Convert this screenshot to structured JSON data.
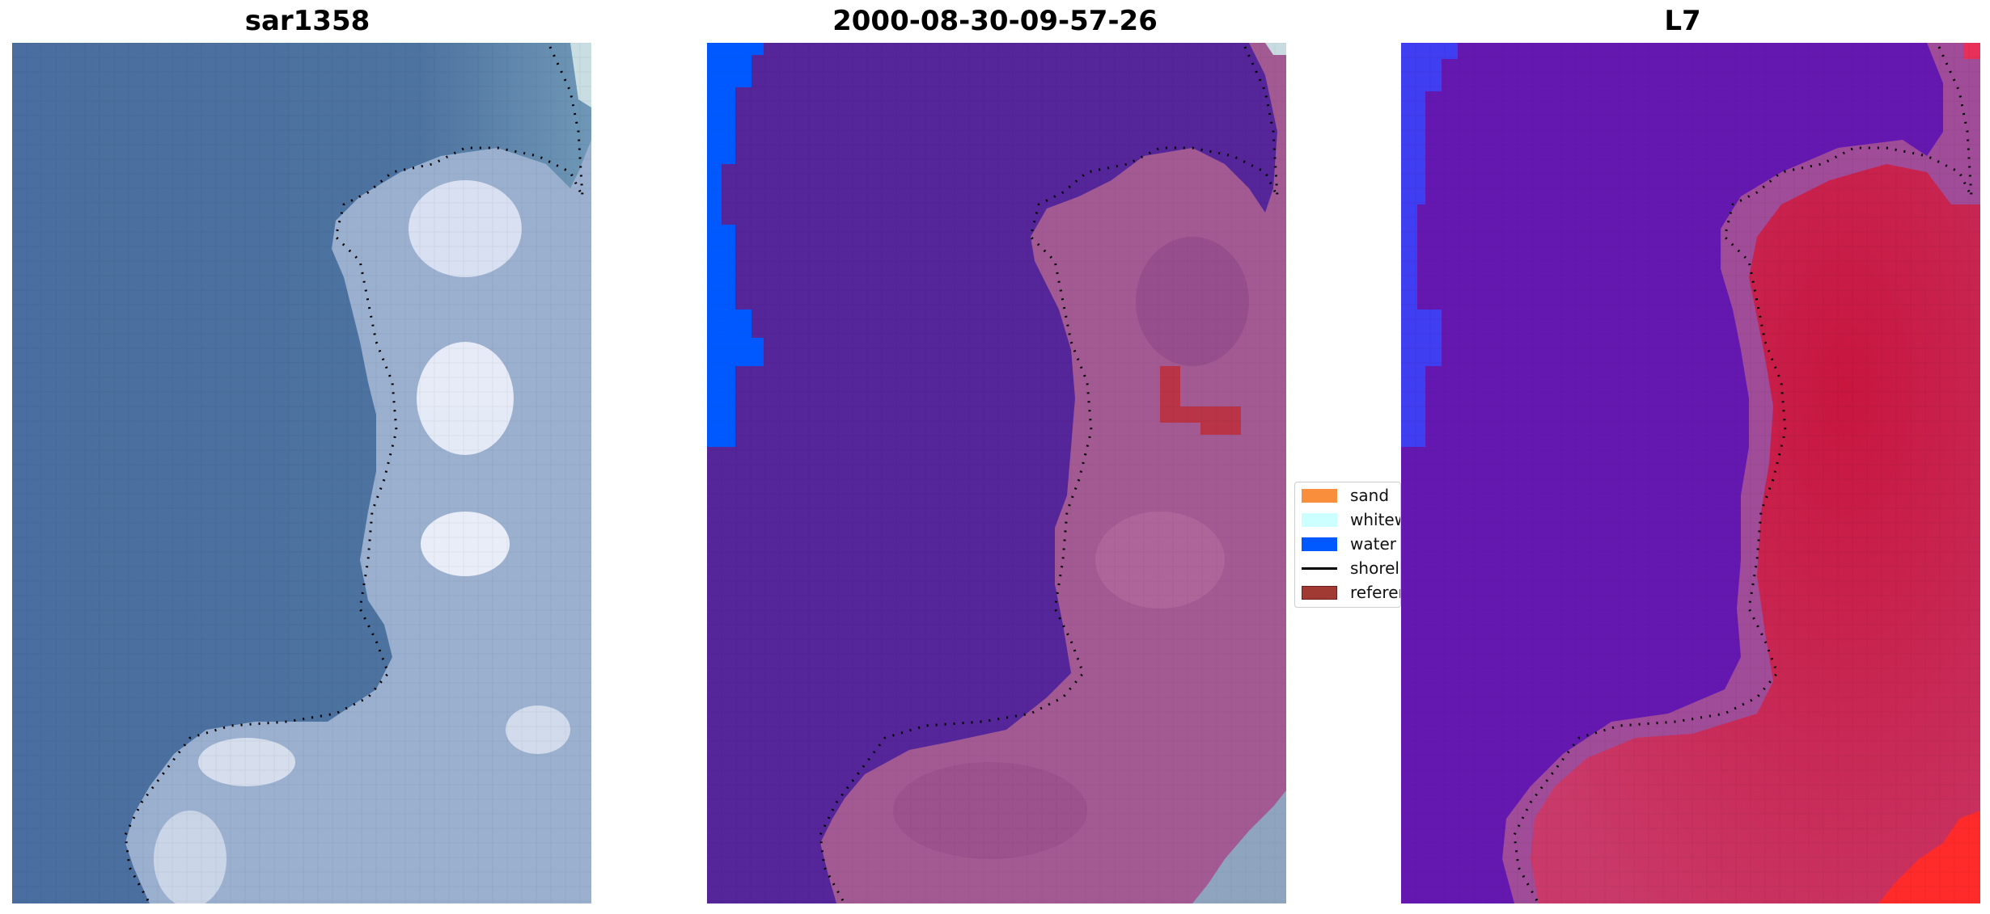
{
  "panels": [
    {
      "title": "sar1358"
    },
    {
      "title": "2000-08-30-09-57-26"
    },
    {
      "title": "L7"
    }
  ],
  "legend": {
    "items": [
      {
        "label": "sand",
        "kind": "patch",
        "color": "#f98e3c"
      },
      {
        "label": "whitewater",
        "kind": "patch",
        "color": "#ccffff"
      },
      {
        "label": "water",
        "kind": "patch",
        "color": "#0059ff"
      },
      {
        "label": "shoreline",
        "kind": "line",
        "color": "#000000"
      },
      {
        "label": "reference shoreline buffer",
        "kind": "patch",
        "color": "#a13a33"
      }
    ]
  },
  "colors": {
    "sea_rgb": "#4b6f9e",
    "land_rgb": "#a9b8d4",
    "surf_rgb": "#e6ecf6",
    "class_water_dark": "#55259a",
    "class_land": "#a35a93",
    "class_water_bright": "#0059ff",
    "class_ref_buffer": "#b83446",
    "index_water": "#6314b3",
    "index_land": "#c61e4a",
    "index_edge": "#ff2a2a"
  }
}
